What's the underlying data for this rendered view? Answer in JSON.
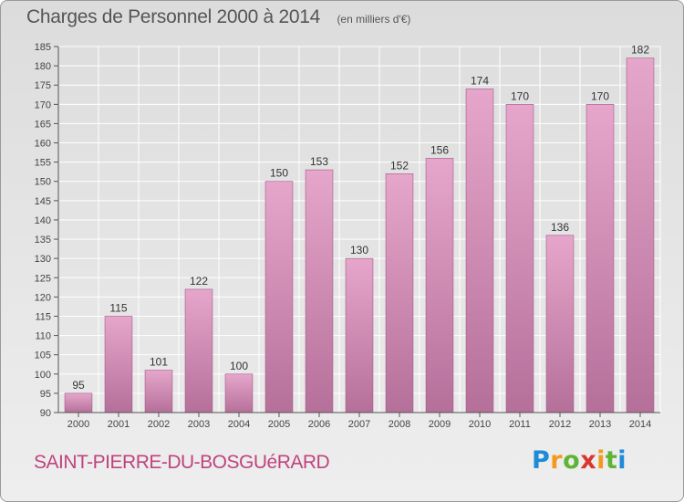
{
  "header": {
    "title": "Charges de Personnel 2000 à 2014",
    "subtitle": "(en milliers d'€)"
  },
  "footer": {
    "commune": "SAINT-PIERRE-DU-BOSGUéRARD",
    "logo": "Proxiti"
  },
  "colors": {
    "bar_top": "#e6a6cb",
    "bar_bottom": "#b5709a",
    "bar_edge": "#a05a86",
    "commune_text": "#c0437e"
  },
  "chart_data": {
    "type": "bar",
    "title": "Charges de Personnel 2000 à 2014",
    "subtitle": "(en milliers d'€)",
    "xlabel": "",
    "ylabel": "",
    "categories": [
      "2000",
      "2001",
      "2002",
      "2003",
      "2004",
      "2005",
      "2006",
      "2007",
      "2008",
      "2009",
      "2010",
      "2011",
      "2012",
      "2013",
      "2014"
    ],
    "values": [
      95,
      115,
      101,
      122,
      100,
      150,
      153,
      130,
      152,
      156,
      174,
      170,
      136,
      170,
      182
    ],
    "ylim": [
      90,
      185
    ],
    "yticks": [
      90,
      95,
      100,
      105,
      110,
      115,
      120,
      125,
      130,
      135,
      140,
      145,
      150,
      155,
      160,
      165,
      170,
      175,
      180,
      185
    ],
    "grid": true,
    "legend": "none"
  }
}
